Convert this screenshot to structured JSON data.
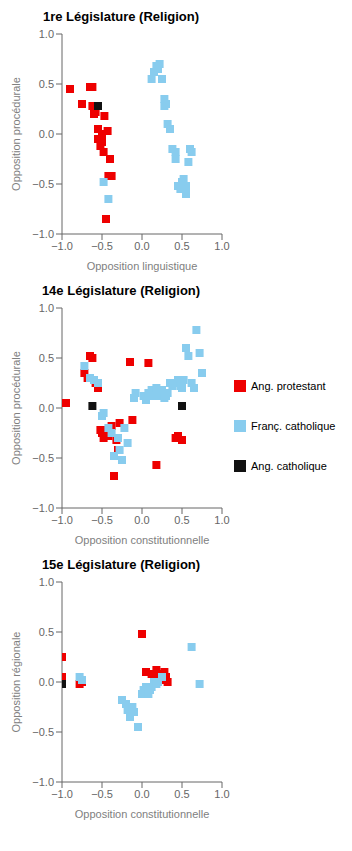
{
  "chart_data": [
    {
      "type": "scatter",
      "title": "1re Législature (Religion)",
      "x_label": "Opposition linguistique",
      "y_label": "Opposition procédurale",
      "xlim": [
        -1.0,
        1.0
      ],
      "ylim": [
        -1.0,
        1.0
      ],
      "xticks": [
        {
          "value": -1.0,
          "label": "−1.0"
        },
        {
          "value": -0.5,
          "label": "−0.5"
        },
        {
          "value": 0.0,
          "label": "0.0"
        },
        {
          "value": 0.5,
          "label": "0.5"
        },
        {
          "value": 1.0,
          "label": "1.0"
        }
      ],
      "yticks": [
        {
          "value": -1.0,
          "label": "−1.0"
        },
        {
          "value": -0.5,
          "label": "−0.5"
        },
        {
          "value": 0.0,
          "label": "0.0"
        },
        {
          "value": 0.5,
          "label": "0.5"
        },
        {
          "value": 1.0,
          "label": "1.0"
        }
      ],
      "grid": false,
      "marker": "square",
      "series": [
        {
          "color": "#EE0000",
          "x": [
            -0.9,
            -0.75,
            -0.65,
            -0.62,
            -0.62,
            -0.6,
            -0.58,
            -0.55,
            -0.55,
            -0.52,
            -0.5,
            -0.5,
            -0.48,
            -0.47,
            -0.45,
            -0.43,
            -0.42,
            -0.4,
            -0.38
          ],
          "y": [
            0.45,
            0.3,
            0.47,
            0.47,
            0.28,
            0.2,
            0.22,
            0.05,
            -0.05,
            -0.12,
            0.0,
            -0.08,
            -0.18,
            0.18,
            -0.85,
            0.03,
            -0.42,
            -0.25,
            -0.42
          ]
        },
        {
          "color": "#88CCEE",
          "x": [
            0.12,
            0.15,
            0.18,
            0.2,
            0.22,
            0.25,
            0.28,
            0.28,
            0.3,
            0.32,
            0.35,
            0.38,
            0.42,
            0.42,
            0.45,
            0.48,
            0.5,
            0.52,
            0.55,
            0.55,
            0.58,
            0.6,
            0.62,
            -0.48,
            -0.42
          ],
          "y": [
            0.55,
            0.62,
            0.68,
            0.65,
            0.7,
            0.55,
            0.28,
            0.35,
            0.3,
            0.1,
            0.05,
            -0.15,
            -0.18,
            -0.25,
            -0.52,
            -0.55,
            -0.48,
            -0.45,
            -0.52,
            -0.6,
            -0.28,
            -0.15,
            -0.18,
            -0.48,
            -0.65
          ]
        },
        {
          "color": "#111111",
          "x": [
            -0.55
          ],
          "y": [
            0.28
          ]
        }
      ]
    },
    {
      "type": "scatter",
      "title": "14e Législature (Religion)",
      "x_label": "Opposition constitutionnelle",
      "y_label": "Opposition procédurale",
      "xlim": [
        -1.0,
        1.0
      ],
      "ylim": [
        -1.0,
        1.0
      ],
      "xticks": [
        {
          "value": -1.0,
          "label": "−1.0"
        },
        {
          "value": -0.5,
          "label": "−0.5"
        },
        {
          "value": 0.0,
          "label": "0.0"
        },
        {
          "value": 0.5,
          "label": "0.5"
        },
        {
          "value": 1.0,
          "label": "1.0"
        }
      ],
      "yticks": [
        {
          "value": -1.0,
          "label": "−1.0"
        },
        {
          "value": -0.5,
          "label": "−0.5"
        },
        {
          "value": 0.0,
          "label": "0.0"
        },
        {
          "value": 0.5,
          "label": "0.5"
        },
        {
          "value": 1.0,
          "label": "1.0"
        }
      ],
      "grid": false,
      "marker": "square",
      "legend": "right",
      "series": [
        {
          "name": "Ang. protestant",
          "color": "#EE0000",
          "x": [
            -0.95,
            -0.72,
            -0.68,
            -0.65,
            -0.62,
            -0.6,
            -0.58,
            -0.55,
            -0.52,
            -0.5,
            -0.48,
            -0.45,
            -0.42,
            -0.38,
            -0.35,
            -0.32,
            -0.3,
            -0.28,
            -0.15,
            -0.12,
            0.08,
            0.18,
            0.42,
            0.45,
            0.5
          ],
          "y": [
            0.05,
            0.35,
            0.3,
            0.52,
            0.5,
            0.28,
            0.25,
            0.2,
            -0.22,
            -0.25,
            -0.3,
            -0.22,
            -0.28,
            -0.18,
            -0.68,
            -0.32,
            -0.42,
            -0.15,
            0.46,
            -0.12,
            0.45,
            -0.57,
            -0.3,
            -0.28,
            -0.32
          ]
        },
        {
          "name": "Franç. catholique",
          "color": "#88CCEE",
          "x": [
            -0.72,
            -0.65,
            -0.6,
            -0.55,
            -0.5,
            -0.48,
            -0.42,
            -0.38,
            -0.35,
            -0.3,
            -0.28,
            -0.25,
            -0.22,
            -0.18,
            -0.1,
            -0.08,
            0.02,
            0.05,
            0.08,
            0.1,
            0.12,
            0.15,
            0.18,
            0.2,
            0.22,
            0.25,
            0.28,
            0.3,
            0.32,
            0.35,
            0.38,
            0.42,
            0.45,
            0.48,
            0.5,
            0.52,
            0.55,
            0.58,
            0.62,
            0.65,
            0.68,
            0.72,
            0.75
          ],
          "y": [
            0.42,
            0.3,
            0.28,
            0.25,
            -0.08,
            -0.05,
            -0.2,
            -0.25,
            -0.48,
            -0.3,
            -0.42,
            -0.52,
            -0.2,
            -0.35,
            0.1,
            0.15,
            0.12,
            0.08,
            0.15,
            0.12,
            0.18,
            0.15,
            0.2,
            0.12,
            0.15,
            0.18,
            0.1,
            0.12,
            0.15,
            0.25,
            0.22,
            0.25,
            0.28,
            0.22,
            0.2,
            0.28,
            0.6,
            0.52,
            0.25,
            0.2,
            0.78,
            0.55,
            0.35
          ]
        },
        {
          "name": "Ang. catholique",
          "color": "#111111",
          "x": [
            -0.62,
            0.5
          ],
          "y": [
            0.02,
            0.02
          ]
        }
      ]
    },
    {
      "type": "scatter",
      "title": "15e Législature (Religion)",
      "x_label": "Opposition constitutionnelle",
      "y_label": "Opposition régionale",
      "xlim": [
        -1.0,
        1.0
      ],
      "ylim": [
        -1.0,
        1.0
      ],
      "xticks": [
        {
          "value": -1.0,
          "label": "−1.0"
        },
        {
          "value": -0.5,
          "label": "−0.5"
        },
        {
          "value": 0.0,
          "label": "0.0"
        },
        {
          "value": 0.5,
          "label": "0.5"
        },
        {
          "value": 1.0,
          "label": "1.0"
        }
      ],
      "yticks": [
        {
          "value": -1.0,
          "label": "−1.0"
        },
        {
          "value": -0.5,
          "label": "−0.5"
        },
        {
          "value": 0.0,
          "label": "0.0"
        },
        {
          "value": 0.5,
          "label": "0.5"
        },
        {
          "value": 1.0,
          "label": "1.0"
        }
      ],
      "grid": false,
      "marker": "square",
      "series": [
        {
          "color": "#EE0000",
          "x": [
            -1.0,
            -1.0,
            -1.0,
            -0.78,
            -0.75,
            0.0,
            0.05,
            0.12,
            0.15,
            0.18,
            0.2,
            0.22,
            0.25,
            0.28,
            0.3,
            0.32
          ],
          "y": [
            0.25,
            0.05,
            0.02,
            -0.02,
            0.0,
            0.48,
            0.1,
            0.08,
            0.05,
            0.12,
            0.08,
            0.05,
            0.02,
            0.1,
            0.05,
            0.0
          ]
        },
        {
          "color": "#88CCEE",
          "x": [
            -1.0,
            -0.78,
            -0.75,
            -0.25,
            -0.2,
            -0.18,
            -0.15,
            -0.12,
            -0.1,
            -0.05,
            0.0,
            0.02,
            0.05,
            0.08,
            0.1,
            0.12,
            0.15,
            0.18,
            0.2,
            0.25,
            0.62,
            0.72
          ],
          "y": [
            -0.02,
            0.05,
            0.02,
            -0.18,
            -0.22,
            -0.28,
            -0.35,
            -0.25,
            -0.3,
            -0.45,
            -0.12,
            -0.08,
            -0.05,
            -0.12,
            -0.08,
            -0.05,
            0.0,
            -0.02,
            0.0,
            0.05,
            0.35,
            -0.02
          ]
        },
        {
          "color": "#111111",
          "x": [
            -1.0
          ],
          "y": [
            -0.02
          ]
        }
      ]
    }
  ]
}
